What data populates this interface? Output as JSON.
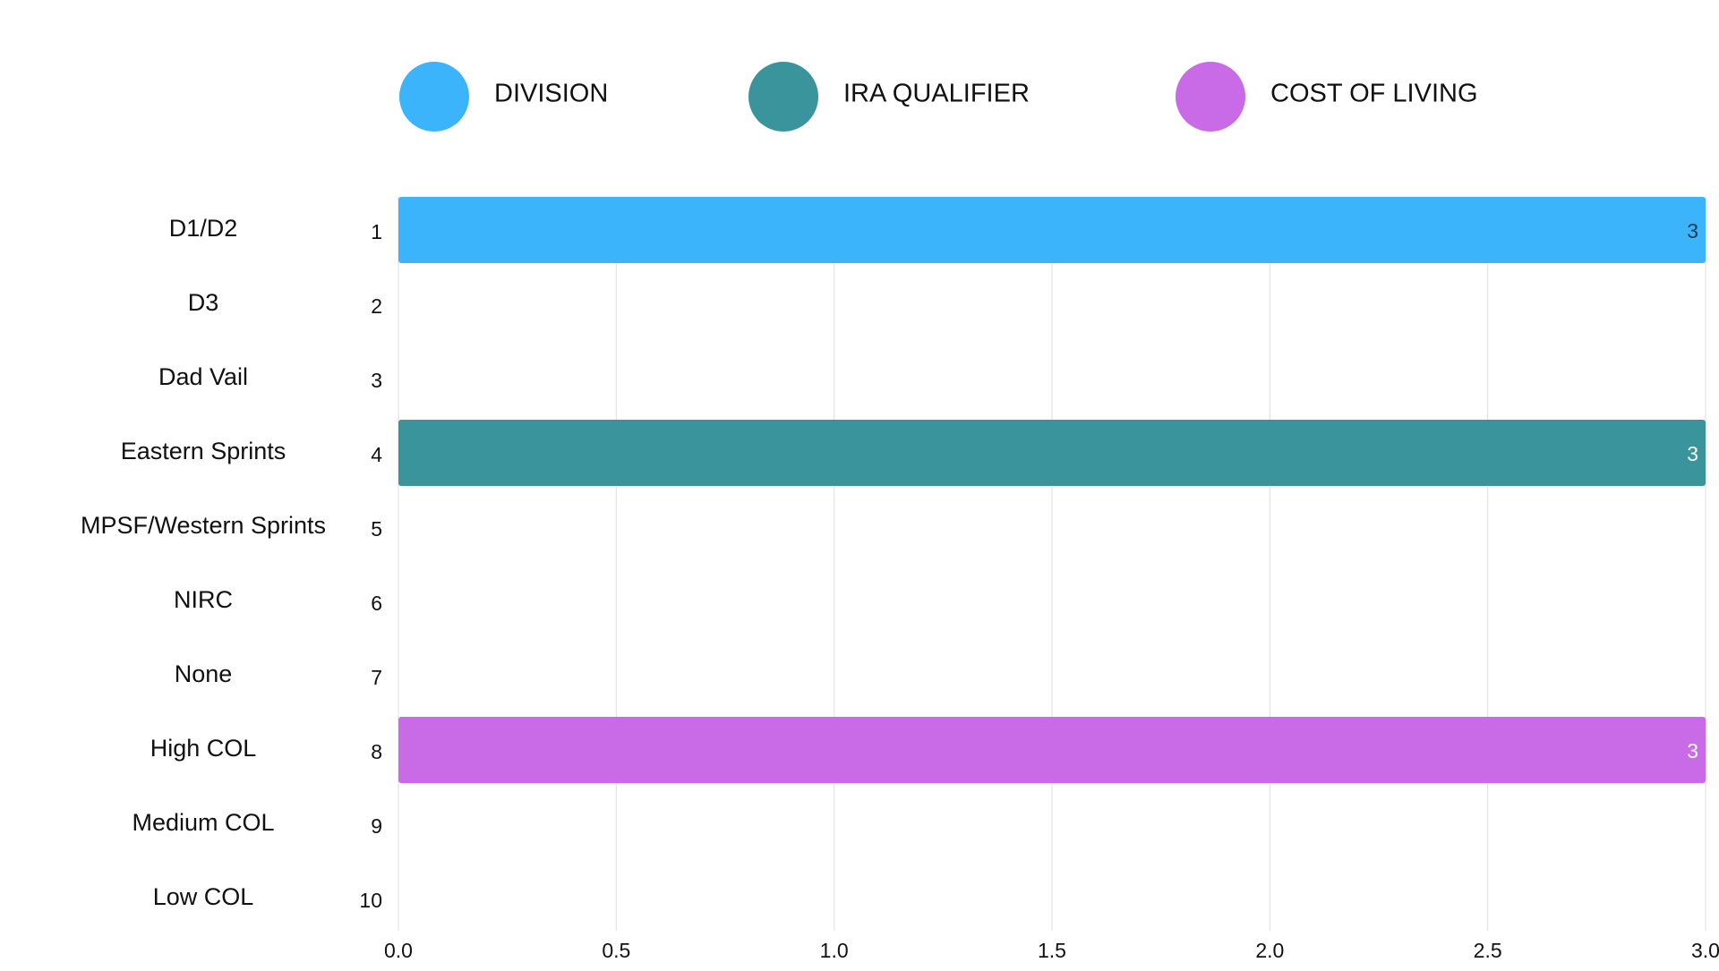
{
  "chart_data": {
    "type": "bar",
    "orientation": "horizontal",
    "stacked": true,
    "categories": [
      "D1/D2",
      "D3",
      "Dad Vail",
      "Eastern Sprints",
      "MPSF/Western Sprints",
      "NIRC",
      "None",
      "High COL",
      "Medium COL",
      "Low COL"
    ],
    "row_numbers": [
      "1",
      "2",
      "3",
      "4",
      "5",
      "6",
      "7",
      "8",
      "9",
      "10"
    ],
    "series": [
      {
        "name": "DIVISION",
        "color": "#3bb4fc",
        "label_color": "#1a3b55",
        "values": [
          3,
          0,
          0,
          0,
          0,
          0,
          0,
          0,
          0,
          0
        ]
      },
      {
        "name": "IRA QUALIFIER",
        "color": "#3a949c",
        "label_color": "#ffffff",
        "values": [
          0,
          0,
          0,
          3,
          0,
          0,
          0,
          0,
          0,
          0
        ]
      },
      {
        "name": "COST OF LIVING",
        "color": "#c96ae6",
        "label_color": "#ffffff",
        "values": [
          0,
          0,
          0,
          0,
          0,
          0,
          0,
          3,
          0,
          0
        ]
      }
    ],
    "data_labels": [
      "3",
      "3",
      "3"
    ],
    "xlim": [
      0,
      3
    ],
    "x_ticks": [
      "0.0",
      "0.5",
      "1.0",
      "1.5",
      "2.0",
      "2.5",
      "3.0"
    ],
    "grid": "vertical",
    "grid_color": "#e3e3e3",
    "legend_position": "top",
    "title": "",
    "xlabel": "",
    "ylabel": ""
  }
}
